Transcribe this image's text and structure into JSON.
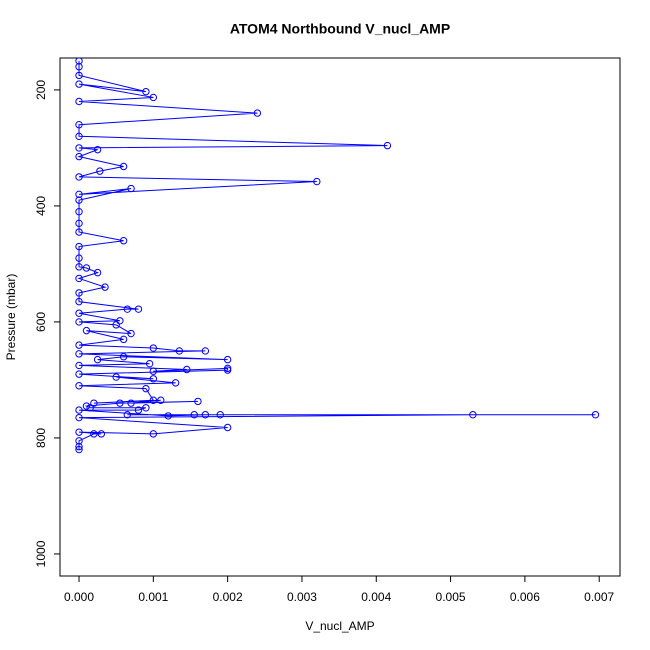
{
  "chart_data": {
    "type": "line",
    "title": "ATOM4 Northbound V_nucl_AMP",
    "x_label": "V_nucl_AMP",
    "y_label": "Pressure (mbar)",
    "color": "#0000ff",
    "x": [
      0,
      0,
      0,
      0.0009,
      0,
      0.001,
      0,
      0.0024,
      0,
      0,
      0.00415,
      0,
      0.00025,
      0,
      0.0006,
      0.00028,
      0,
      0.0032,
      0,
      0.0007,
      0,
      0,
      0,
      0,
      0.0006,
      0,
      0,
      0,
      0.0001,
      0.00025,
      0,
      0.00035,
      0,
      0,
      0.0008,
      0.00065,
      0,
      0.00055,
      0,
      0.0005,
      0.0007,
      0.0001,
      0.0006,
      0,
      0.001,
      0.00135,
      0.0017,
      0,
      0.002,
      0.0006,
      0.00025,
      0.00095,
      0,
      0.00145,
      0.001,
      0.002,
      0.002,
      0,
      0.001,
      0.0005,
      0.0013,
      0,
      0.0009,
      0.001,
      0.0002,
      0.0011,
      0.0007,
      0.0016,
      0.00055,
      0.0001,
      0.00015,
      0.0009,
      0.0008,
      0,
      0.0012,
      0.0017,
      0.0019,
      0.00155,
      0.00065,
      0.00695,
      0.0053,
      0,
      0.002,
      0.001,
      0,
      0.0003,
      0.0002,
      0,
      0,
      0
    ],
    "values": [
      150,
      160,
      175,
      203,
      190,
      213,
      220,
      240,
      260,
      280,
      296,
      300,
      303,
      315,
      332,
      340,
      350,
      358,
      380,
      370,
      390,
      410,
      430,
      445,
      460,
      470,
      490,
      505,
      507,
      515,
      525,
      540,
      550,
      565,
      578,
      578,
      585,
      598,
      600,
      605,
      620,
      615,
      630,
      640,
      645,
      650,
      650,
      655,
      665,
      660,
      665,
      672,
      675,
      682,
      685,
      680,
      683,
      690,
      698,
      695,
      705,
      710,
      715,
      735,
      740,
      735,
      740,
      737,
      740,
      745,
      748,
      748,
      752,
      752,
      762,
      760,
      760,
      760,
      760,
      760,
      760,
      765,
      782,
      793,
      790,
      793,
      793,
      805,
      815,
      820
    ],
    "xlim": [
      -0.000256,
      0.00728
    ],
    "xticks": [
      {
        "value": 0,
        "label": "0.000"
      },
      {
        "value": 0.001,
        "label": "0.001"
      },
      {
        "value": 0.002,
        "label": "0.002"
      },
      {
        "value": 0.003,
        "label": "0.003"
      },
      {
        "value": 0.004,
        "label": "0.004"
      },
      {
        "value": 0.005,
        "label": "0.005"
      },
      {
        "value": 0.006,
        "label": "0.006"
      },
      {
        "value": 0.007,
        "label": "0.007"
      }
    ],
    "ylim": [
      1038,
      145
    ],
    "yticks": [
      200,
      400,
      600,
      800,
      1000
    ]
  }
}
